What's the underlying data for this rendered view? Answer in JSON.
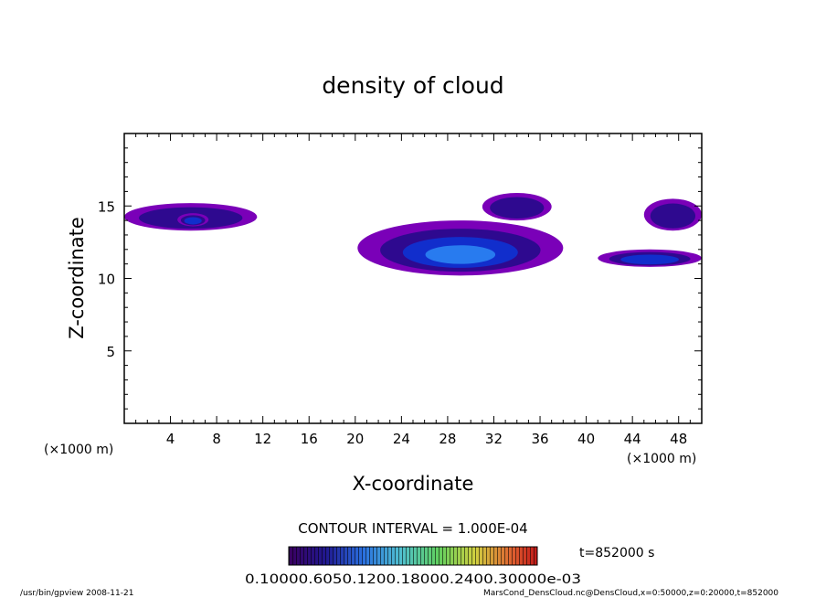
{
  "chart_data": {
    "type": "heatmap",
    "title": "density of cloud",
    "xlabel": "X-coordinate",
    "ylabel": "Z-coordinate",
    "x_unit_left": "(×1000 m)",
    "x_unit_right": "(×1000 m)",
    "xlim": [
      0,
      50
    ],
    "ylim": [
      0,
      20
    ],
    "xticks": [
      4,
      8,
      12,
      16,
      20,
      24,
      28,
      32,
      36,
      40,
      44,
      48
    ],
    "yticks": [
      5,
      10,
      15
    ],
    "contour_interval": "CONTOUR INTERVAL = 1.000E-04",
    "time_label": "t=852000 s",
    "colorbar_labels": "0.10000.6050.1200.18000.2400.30000e-03",
    "colors": [
      "#7a00b8",
      "#2a0a8c",
      "#1030d0",
      "#2a80f0",
      "#60b0ff"
    ],
    "cloud_regions": [
      {
        "x": [
          0.0,
          11.5
        ],
        "z": [
          13.3,
          15.2
        ],
        "level": 1
      },
      {
        "x": [
          4.6,
          7.3
        ],
        "z": [
          13.6,
          14.5
        ],
        "level": 2
      },
      {
        "x": [
          20.2,
          38.0
        ],
        "z": [
          10.2,
          14.0
        ],
        "level": 3
      },
      {
        "x": [
          31.0,
          37.0
        ],
        "z": [
          14.0,
          15.9
        ],
        "level": 1
      },
      {
        "x": [
          41.0,
          50.0
        ],
        "z": [
          10.8,
          12.0
        ],
        "level": 2
      },
      {
        "x": [
          45.0,
          50.0
        ],
        "z": [
          13.3,
          15.5
        ],
        "level": 1
      }
    ]
  },
  "footer": {
    "left": "/usr/bin/gpview   2008-11-21",
    "right": "MarsCond_DensCloud.nc@DensCloud,x=0:50000,z=0:20000,t=852000"
  }
}
